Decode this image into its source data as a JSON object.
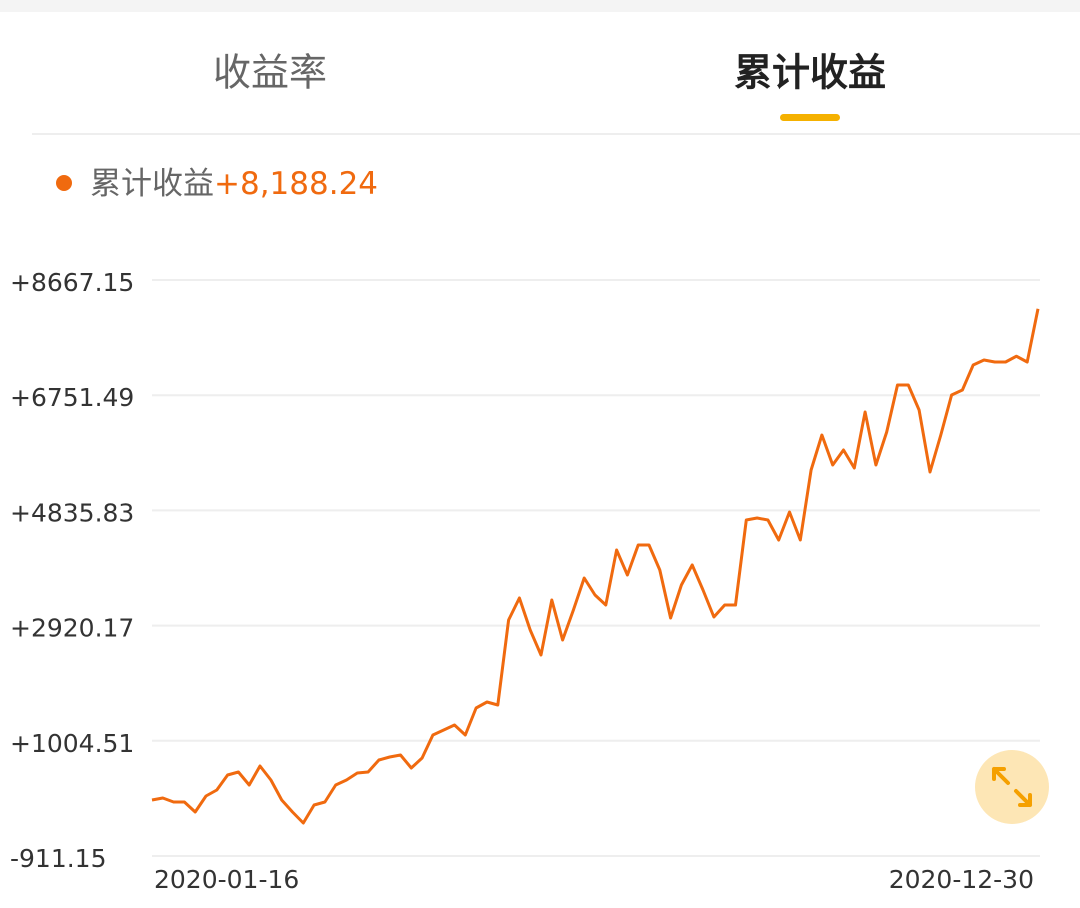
{
  "tabs": [
    {
      "label": "收益率",
      "active": false
    },
    {
      "label": "累计收益",
      "active": true
    }
  ],
  "legend": {
    "label": "累计收益",
    "value": "+8,188.24"
  },
  "chart_data": {
    "type": "line",
    "categories": [
      "2020-01-16",
      null,
      null,
      null,
      null,
      null,
      null,
      null,
      null,
      null,
      null,
      null,
      null,
      null,
      null,
      null,
      null,
      null,
      null,
      null,
      null,
      null,
      null,
      null,
      null,
      null,
      null,
      null,
      null,
      null,
      null,
      null,
      null,
      null,
      null,
      null,
      null,
      null,
      null,
      null,
      null,
      null,
      null,
      null,
      null,
      null,
      null,
      null,
      null,
      null,
      null,
      null,
      null,
      null,
      null,
      null,
      null,
      null,
      null,
      null,
      null,
      null,
      null,
      null,
      null,
      null,
      null,
      null,
      null,
      null,
      null,
      null,
      null,
      null,
      null,
      null,
      null,
      null,
      null,
      null,
      null,
      null,
      "2020-12-30"
    ],
    "series": [
      {
        "name": "累计收益",
        "color": "#f06a0f",
        "values": [
          20,
          53,
          -13,
          -13,
          -179,
          87,
          186,
          436,
          486,
          270,
          585,
          353,
          20,
          -179,
          -362,
          -63,
          -13,
          270,
          353,
          469,
          486,
          685,
          735,
          768,
          552,
          718,
          1101,
          1184,
          1267,
          1101,
          1550,
          1650,
          1600,
          3013,
          3379,
          2847,
          2431,
          3346,
          2681,
          3180,
          3712,
          3429,
          3263,
          4177,
          3762,
          4260,
          4260,
          3845,
          3047,
          3595,
          3928,
          3512,
          3063,
          3263,
          3263,
          4676,
          4709,
          4676,
          4344,
          4809,
          4344,
          5508,
          6090,
          5591,
          5840,
          5541,
          6472,
          5591,
          6140,
          6921,
          6921,
          6505,
          5474,
          6090,
          6755,
          6838,
          7254,
          7337,
          7304,
          7304,
          7400,
          7304,
          8188.24
        ]
      }
    ],
    "ylim": [
      -911.15,
      8667.15
    ],
    "yticks": [
      {
        "value": 8667.15,
        "label": "+8667.15"
      },
      {
        "value": 6751.49,
        "label": "+6751.49"
      },
      {
        "value": 4835.83,
        "label": "+4835.83"
      },
      {
        "value": 2920.17,
        "label": "+2920.17"
      },
      {
        "value": 1004.51,
        "label": "+1004.51"
      },
      -911.15
    ],
    "grid": true
  }
}
